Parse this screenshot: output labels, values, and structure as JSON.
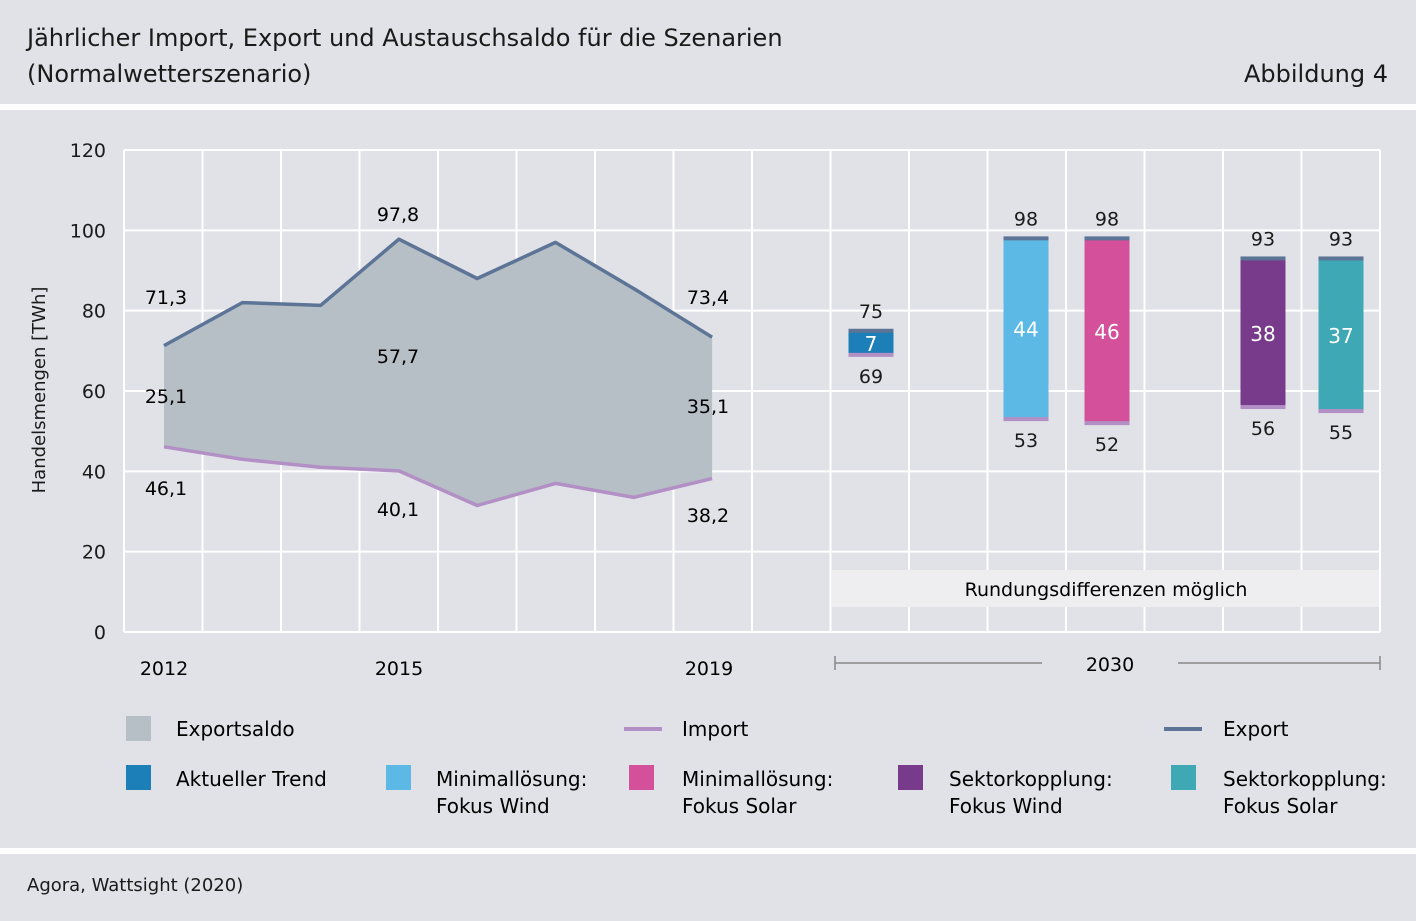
{
  "header": {
    "title_line1": "Jährlicher Import, Export und Austauschsaldo für die Szenarien",
    "title_line2": "(Normalwetterszenario)",
    "figure_label": "Abbildung 4"
  },
  "footer": {
    "source": "Agora, Wattsight (2020)"
  },
  "colors": {
    "background": "#e1e2e7",
    "grid": "#ffffff",
    "exportsaldo": "#b6bec6",
    "import": "#b28fc4",
    "export": "#5c7496",
    "aktueller_trend": "#1d7fb8",
    "min_wind": "#5cb9e6",
    "min_solar": "#d4509a",
    "sek_wind": "#783b8c",
    "sek_solar": "#3ea8b4"
  },
  "chart_data": {
    "type": "area",
    "ylabel": "Handelsmengen [TWh]",
    "ylim": [
      0,
      120
    ],
    "yticks": [
      0,
      20,
      40,
      60,
      80,
      100,
      120
    ],
    "grid": true,
    "x_tick_labels": [
      "2012",
      "2015",
      "2019",
      "2030"
    ],
    "historical": {
      "years": [
        2012,
        2013,
        2014,
        2015,
        2016,
        2017,
        2018,
        2019
      ],
      "export": [
        71.3,
        82.0,
        81.3,
        97.8,
        88.0,
        97.0,
        85.5,
        73.4
      ],
      "import": [
        46.1,
        43.0,
        41.0,
        40.1,
        31.5,
        37.0,
        33.5,
        38.2
      ],
      "labels": {
        "export_2012": "71,3",
        "export_2015": "97,8",
        "export_2019": "73,4",
        "import_2012": "46,1",
        "import_2015": "40,1",
        "import_2019": "38,2",
        "saldo_2012": "25,1",
        "saldo_2015": "57,7",
        "saldo_2019": "35,1"
      }
    },
    "scenarios_2030": [
      {
        "key": "aktueller_trend",
        "export": 75,
        "import": 69,
        "saldo": 7,
        "export_label": "75",
        "import_label": "69",
        "saldo_label": "7"
      },
      {
        "key": "min_wind",
        "export": 98,
        "import": 53,
        "saldo": 44,
        "export_label": "98",
        "import_label": "53",
        "saldo_label": "44"
      },
      {
        "key": "min_solar",
        "export": 98,
        "import": 52,
        "saldo": 46,
        "export_label": "98",
        "import_label": "52",
        "saldo_label": "46"
      },
      {
        "key": "sek_wind",
        "export": 93,
        "import": 56,
        "saldo": 38,
        "export_label": "93",
        "import_label": "56",
        "saldo_label": "38"
      },
      {
        "key": "sek_solar",
        "export": 93,
        "import": 55,
        "saldo": 37,
        "export_label": "93",
        "import_label": "55",
        "saldo_label": "37"
      }
    ],
    "note": "Rundungsdifferenzen möglich",
    "legend": {
      "exportsaldo": "Exportsaldo",
      "import": "Import",
      "export": "Export",
      "aktueller_trend": "Aktueller Trend",
      "min_wind_1": "Minimallösung:",
      "min_wind_2": "Fokus Wind",
      "min_solar_1": "Minimallösung:",
      "min_solar_2": "Fokus Solar",
      "sek_wind_1": "Sektorkopplung:",
      "sek_wind_2": "Fokus Wind",
      "sek_solar_1": "Sektorkopplung:",
      "sek_solar_2": "Fokus Solar"
    }
  }
}
